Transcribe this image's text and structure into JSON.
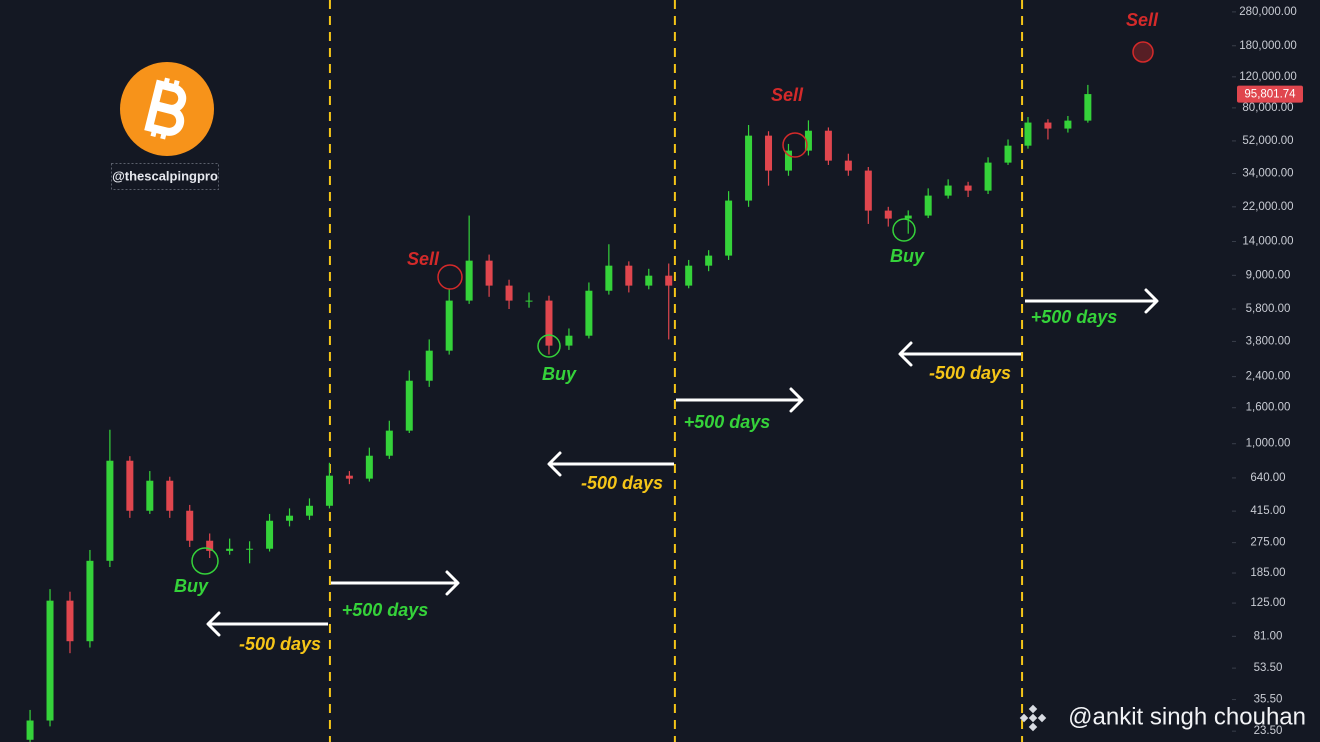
{
  "chart_data": {
    "type": "candlestick",
    "log_y": true,
    "ylim": [
      20.4,
      327000
    ],
    "yticks": [
      {
        "value": 280000,
        "label": "280,000.00"
      },
      {
        "value": 180000,
        "label": "180,000.00"
      },
      {
        "value": 120000,
        "label": "120,000.00"
      },
      {
        "value": 80000,
        "label": "80,000.00"
      },
      {
        "value": 52000,
        "label": "52,000.00"
      },
      {
        "value": 34000,
        "label": "34,000.00"
      },
      {
        "value": 22000,
        "label": "22,000.00"
      },
      {
        "value": 14000,
        "label": "14,000.00"
      },
      {
        "value": 9000,
        "label": "9,000.00"
      },
      {
        "value": 5800,
        "label": "5,800.00"
      },
      {
        "value": 3800,
        "label": "3,800.00"
      },
      {
        "value": 2400,
        "label": "2,400.00"
      },
      {
        "value": 1600,
        "label": "1,600.00"
      },
      {
        "value": 1000,
        "label": "1,000.00"
      },
      {
        "value": 640,
        "label": "640.00"
      },
      {
        "value": 415,
        "label": "415.00"
      },
      {
        "value": 275,
        "label": "275.00"
      },
      {
        "value": 185,
        "label": "185.00"
      },
      {
        "value": 125,
        "label": "125.00"
      },
      {
        "value": 81,
        "label": "81.00"
      },
      {
        "value": 53.5,
        "label": "53.50"
      },
      {
        "value": 35.5,
        "label": "35.50"
      },
      {
        "value": 23.5,
        "label": "23.50"
      }
    ],
    "xlim": [
      0,
      5000
    ],
    "x": [
      122,
      203,
      284,
      365,
      446,
      527,
      608,
      689,
      770,
      851,
      932,
      1013,
      1094,
      1175,
      1256,
      1337,
      1418,
      1499,
      1580,
      1661,
      1742,
      1823,
      1904,
      1985,
      2066,
      2147,
      2228,
      2309,
      2390,
      2471,
      2552,
      2633,
      2714,
      2795,
      2876,
      2957,
      3038,
      3119,
      3200,
      3281,
      3362,
      3443,
      3524,
      3605,
      3686,
      3767,
      3848,
      3929,
      4010,
      4091,
      4172,
      4253,
      4334,
      4415
    ],
    "opens": [
      21,
      27,
      129,
      76,
      217,
      801,
      417,
      617,
      417,
      282,
      247,
      254,
      254,
      366,
      391,
      445,
      659,
      634,
      855,
      1186,
      2275,
      3367,
      6471,
      10900,
      7870,
      6471,
      6471,
      3597,
      4094,
      7362,
      10210,
      7870,
      8960,
      7870,
      10210,
      11640,
      23870,
      55700,
      35300,
      45800,
      59400,
      40200,
      35300,
      20940,
      18870,
      19630,
      25470,
      29040,
      27170,
      39170,
      48870,
      66070,
      61090,
      67760
    ],
    "highs": [
      31,
      150,
      145,
      250,
      1200,
      850,
      700,
      650,
      450,
      310,
      290,
      280,
      400,
      430,
      490,
      780,
      700,
      950,
      1350,
      2600,
      3900,
      7500,
      19630,
      11800,
      8500,
      7200,
      6900,
      4500,
      8200,
      13500,
      10800,
      9800,
      10500,
      11000,
      12500,
      27000,
      64000,
      59000,
      50000,
      68000,
      62000,
      44000,
      37000,
      22000,
      21000,
      28000,
      31500,
      30500,
      42000,
      53000,
      71000,
      69000,
      72000,
      108000
    ],
    "lows": [
      19,
      25,
      65,
      70,
      200,
      380,
      400,
      380,
      260,
      225,
      235,
      210,
      245,
      340,
      370,
      430,
      590,
      610,
      820,
      1150,
      2100,
      3200,
      6200,
      6800,
      5800,
      5900,
      3200,
      3400,
      3950,
      7000,
      7200,
      7500,
      3900,
      7600,
      9500,
      11000,
      22000,
      29000,
      33000,
      43000,
      38000,
      33000,
      17600,
      17000,
      15500,
      19000,
      24500,
      25000,
      26000,
      38000,
      47000,
      53000,
      58000,
      66000
    ],
    "closes": [
      27,
      129,
      76,
      217,
      801,
      417,
      617,
      417,
      282,
      247,
      254,
      254,
      366,
      391,
      445,
      659,
      634,
      855,
      1186,
      2275,
      3367,
      6471,
      10900,
      7870,
      6471,
      6471,
      3597,
      4094,
      7362,
      10210,
      7870,
      8960,
      7870,
      10210,
      11640,
      23870,
      55700,
      35300,
      45800,
      59400,
      40200,
      35300,
      20940,
      18870,
      19630,
      25470,
      29040,
      27170,
      39170,
      48870,
      66070,
      61090,
      67760,
      95801.74
    ],
    "up_color": "#35d23a",
    "down_color": "#e0464e",
    "vlines": [
      1339,
      2739,
      4148
    ],
    "vline_color": "#f5c518",
    "last_label": {
      "value": 95801.74,
      "label": "95,801.74"
    },
    "signals": [
      {
        "label": "Sell",
        "color": "#d42a2a"
      },
      {
        "label": "Sell",
        "color": "#d42a2a"
      },
      {
        "label": "Sell",
        "color": "#d42a2a"
      },
      {
        "label": "Buy",
        "color": "#35d23a"
      },
      {
        "label": "Buy",
        "color": "#35d23a"
      },
      {
        "label": "Buy",
        "color": "#35d23a"
      }
    ],
    "arrows": [
      {
        "label": "-500 days",
        "color": "#f5c518"
      },
      {
        "label": "+500 days",
        "color": "#35d23a"
      },
      {
        "label": "-500 days",
        "color": "#f5c518"
      },
      {
        "label": "+500 days",
        "color": "#35d23a"
      },
      {
        "label": "-500 days",
        "color": "#f5c518"
      },
      {
        "label": "+500 days",
        "color": "#35d23a"
      }
    ]
  },
  "branding": {
    "handle": "@thescalpingpro",
    "watermark": "@ankit singh chouhan"
  }
}
